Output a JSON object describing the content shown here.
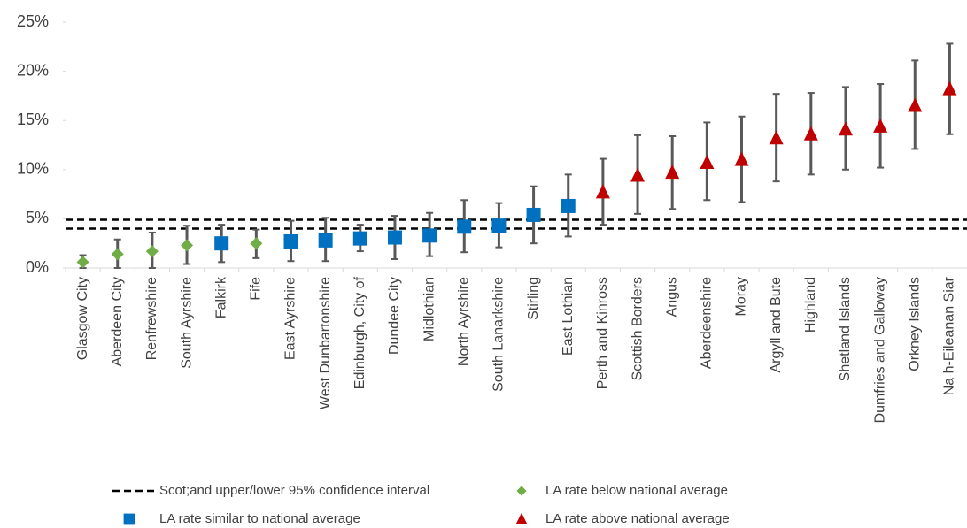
{
  "chart_data": {
    "type": "errorbar-scatter",
    "categories": [
      "Glasgow City",
      "Aberdeen City",
      "Renfrewshire",
      "South Ayrshire",
      "Falkirk",
      "Fife",
      "East Ayrshire",
      "West Dunbartonshire",
      "Edinburgh, City of",
      "Dundee City",
      "Midlothian",
      "North Ayrshire",
      "South Lanarkshire",
      "Stirling",
      "East Lothian",
      "Perth and Kinross",
      "Scottish Borders",
      "Angus",
      "Aberdeenshire",
      "Moray",
      "Argyll and Bute",
      "Highland",
      "Shetland Islands",
      "Dumfries and Galloway",
      "Orkney Islands",
      "Na h-Eileanan Siar"
    ],
    "series": [
      {
        "name": "LA rate below national average",
        "color": "#70ad47",
        "marker": "diamond",
        "values": [
          0.6,
          1.4,
          1.7,
          2.3,
          null,
          2.5,
          null,
          null,
          null,
          null,
          null,
          null,
          null,
          null,
          null,
          null,
          null,
          null,
          null,
          null,
          null,
          null,
          null,
          null,
          null,
          null
        ],
        "lower": [
          0.0,
          0.0,
          0.0,
          0.4,
          null,
          1.0,
          null,
          null,
          null,
          null,
          null,
          null,
          null,
          null,
          null,
          null,
          null,
          null,
          null,
          null,
          null,
          null,
          null,
          null,
          null,
          null
        ],
        "upper": [
          1.3,
          2.9,
          3.6,
          4.3,
          null,
          3.9,
          null,
          null,
          null,
          null,
          null,
          null,
          null,
          null,
          null,
          null,
          null,
          null,
          null,
          null,
          null,
          null,
          null,
          null,
          null,
          null
        ]
      },
      {
        "name": "LA rate similar to national average",
        "color": "#0070c0",
        "marker": "square",
        "values": [
          null,
          null,
          null,
          null,
          2.5,
          null,
          2.7,
          2.8,
          3.0,
          3.1,
          3.3,
          4.2,
          4.3,
          5.4,
          6.3,
          null,
          null,
          null,
          null,
          null,
          null,
          null,
          null,
          null,
          null,
          null
        ],
        "lower": [
          null,
          null,
          null,
          null,
          0.6,
          null,
          0.7,
          0.7,
          1.7,
          0.9,
          1.2,
          1.6,
          2.1,
          2.5,
          3.2,
          null,
          null,
          null,
          null,
          null,
          null,
          null,
          null,
          null,
          null,
          null
        ],
        "upper": [
          null,
          null,
          null,
          null,
          4.4,
          null,
          4.8,
          5.1,
          4.4,
          5.3,
          5.6,
          6.9,
          6.6,
          8.3,
          9.5,
          null,
          null,
          null,
          null,
          null,
          null,
          null,
          null,
          null,
          null,
          null
        ]
      },
      {
        "name": "LA rate above national average",
        "color": "#c00000",
        "marker": "triangle",
        "values": [
          null,
          null,
          null,
          null,
          null,
          null,
          null,
          null,
          null,
          null,
          null,
          null,
          null,
          null,
          null,
          7.7,
          9.4,
          9.7,
          10.7,
          11.0,
          13.2,
          13.6,
          14.1,
          14.4,
          16.5,
          18.2
        ],
        "lower": [
          null,
          null,
          null,
          null,
          null,
          null,
          null,
          null,
          null,
          null,
          null,
          null,
          null,
          null,
          null,
          4.4,
          5.5,
          6.0,
          6.9,
          6.7,
          8.8,
          9.5,
          10.0,
          10.2,
          12.1,
          13.6
        ],
        "upper": [
          null,
          null,
          null,
          null,
          null,
          null,
          null,
          null,
          null,
          null,
          null,
          null,
          null,
          null,
          null,
          11.1,
          13.5,
          13.4,
          14.8,
          15.4,
          17.7,
          17.8,
          18.4,
          18.7,
          21.1,
          22.8
        ]
      }
    ],
    "reference_lines": {
      "name": "Scot;and upper/lower 95% confidence interval",
      "color": "#000000",
      "style": "dashed",
      "values": [
        4.9,
        4.0
      ]
    },
    "error_bar_color": "#595959",
    "ylim": [
      0,
      25
    ],
    "yticks": [
      {
        "value": 0,
        "label": "0%"
      },
      {
        "value": 5,
        "label": "5%"
      },
      {
        "value": 10,
        "label": "10%"
      },
      {
        "value": 15,
        "label": "15%"
      },
      {
        "value": 20,
        "label": "20%"
      },
      {
        "value": 25,
        "label": "25%"
      }
    ],
    "grid": false,
    "legend": "bottom"
  }
}
